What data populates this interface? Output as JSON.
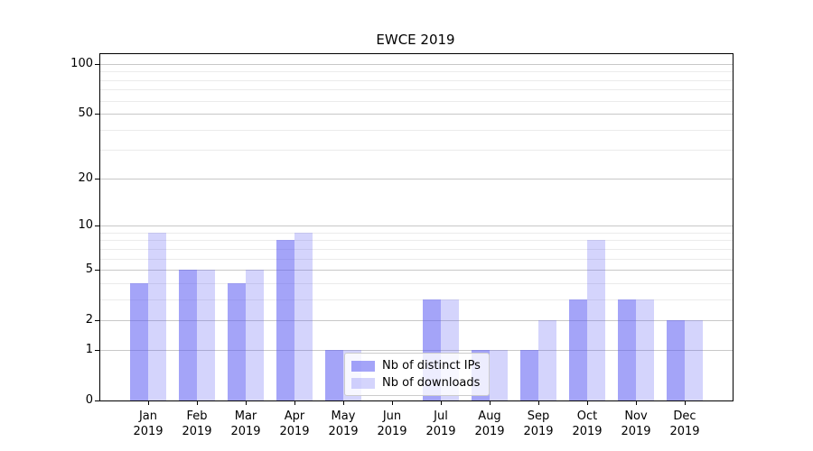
{
  "chart_data": {
    "type": "bar",
    "title": "EWCE 2019",
    "categories": [
      "Jan 2019",
      "Feb 2019",
      "Mar 2019",
      "Apr 2019",
      "May 2019",
      "Jun 2019",
      "Jul 2019",
      "Aug 2019",
      "Sep 2019",
      "Oct 2019",
      "Nov 2019",
      "Dec 2019"
    ],
    "series": [
      {
        "name": "Nb of distinct IPs",
        "values": [
          4,
          5,
          4,
          8,
          1,
          0,
          3,
          1,
          1,
          3,
          3,
          2
        ],
        "color": "rgba(90,90,243,0.55)"
      },
      {
        "name": "Nb of downloads",
        "values": [
          9,
          5,
          5,
          9,
          1,
          0,
          3,
          1,
          2,
          8,
          3,
          2
        ],
        "color": "rgba(90,90,243,0.26)"
      }
    ],
    "xlabel": "",
    "ylabel": "",
    "yscale": "log1p",
    "ylim": [
      0,
      115
    ],
    "y_ticks_major": [
      100,
      50,
      20,
      10,
      5,
      2,
      1,
      0
    ],
    "y_ticks_minor": [
      3,
      4,
      6,
      7,
      8,
      9,
      30,
      40,
      60,
      70,
      80,
      90
    ],
    "grid": "horizontal",
    "legend_position": "inside-center-right"
  }
}
